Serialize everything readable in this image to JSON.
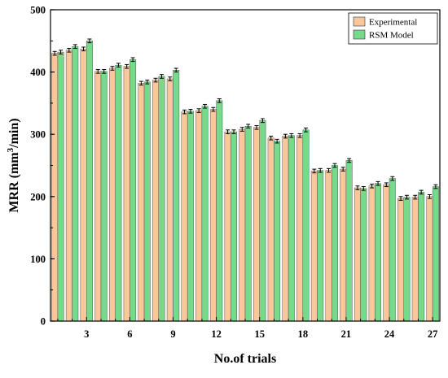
{
  "chart_data": {
    "type": "bar",
    "title": "",
    "xlabel": "No.of trials",
    "ylabel_main": "MRR (mm",
    "ylabel_sup": "3",
    "ylabel_tail": "/min)",
    "ylim": [
      0,
      500
    ],
    "yticks": [
      0,
      100,
      200,
      300,
      400,
      500
    ],
    "xticks": [
      3,
      6,
      9,
      12,
      15,
      18,
      21,
      24,
      27
    ],
    "categories": [
      1,
      2,
      3,
      4,
      5,
      6,
      7,
      8,
      9,
      10,
      11,
      12,
      13,
      14,
      15,
      16,
      17,
      18,
      19,
      20,
      21,
      22,
      23,
      24,
      25,
      26,
      27
    ],
    "series": [
      {
        "name": "Experimental",
        "color": "#F9C79A",
        "values": [
          430,
          435,
          437,
          401,
          406,
          409,
          382,
          387,
          389,
          336,
          338,
          340,
          304,
          308,
          311,
          294,
          297,
          298,
          241,
          242,
          244,
          214,
          217,
          219,
          197,
          199,
          200
        ],
        "errors": [
          3,
          3,
          3,
          3,
          3,
          3,
          3,
          3,
          3,
          3,
          3,
          3,
          3,
          3,
          3,
          3,
          3,
          3,
          3,
          3,
          3,
          3,
          3,
          3,
          3,
          3,
          3
        ]
      },
      {
        "name": "RSM Model",
        "color": "#77D98A",
        "values": [
          432,
          441,
          450,
          401,
          411,
          420,
          384,
          393,
          403,
          337,
          345,
          354,
          304,
          313,
          322,
          289,
          298,
          307,
          242,
          250,
          258,
          213,
          221,
          229,
          199,
          207,
          216
        ],
        "errors": [
          3,
          3,
          3,
          3,
          3,
          3,
          3,
          3,
          3,
          3,
          3,
          3,
          3,
          3,
          3,
          3,
          3,
          3,
          3,
          3,
          3,
          3,
          3,
          3,
          3,
          3,
          3
        ]
      }
    ],
    "grid": false,
    "legend_position": "top-right"
  }
}
